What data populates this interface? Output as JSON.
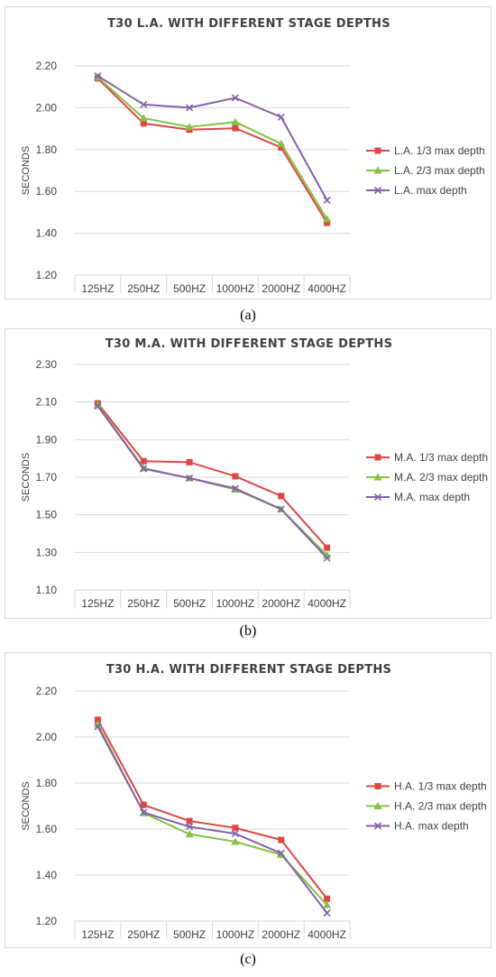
{
  "colors": {
    "series1": "#e04545",
    "series2": "#82c341",
    "series3": "#8560a8",
    "grid": "#d9d9d9",
    "text": "#404040"
  },
  "chart_data": [
    {
      "type": "line",
      "title": "T30 L.A. WITH DIFFERENT STAGE DEPTHS",
      "caption": "(a)",
      "xlabel": "",
      "ylabel": "SECONDS",
      "categories": [
        "125HZ",
        "250HZ",
        "500HZ",
        "1000HZ",
        "2000HZ",
        "4000HZ"
      ],
      "ylim": [
        1.2,
        2.2
      ],
      "ytick_step": 0.2,
      "ytick_labels": [
        "1.20",
        "1.40",
        "1.60",
        "1.80",
        "2.00",
        "2.20"
      ],
      "grid": true,
      "legend_position": "right",
      "series": [
        {
          "name": "L.A. 1/3 max depth",
          "marker": "square",
          "values": [
            2.14,
            1.925,
            1.895,
            1.902,
            1.81,
            1.45
          ]
        },
        {
          "name": "L.A. 2/3 max depth",
          "marker": "triangle",
          "values": [
            2.145,
            1.95,
            1.908,
            1.932,
            1.828,
            1.468
          ]
        },
        {
          "name": "L.A. max depth",
          "marker": "x",
          "values": [
            2.152,
            2.015,
            2.0,
            2.047,
            1.955,
            1.558
          ]
        }
      ]
    },
    {
      "type": "line",
      "title": "T30 M.A. WITH DIFFERENT STAGE DEPTHS",
      "caption": "(b)",
      "xlabel": "",
      "ylabel": "SECONDS",
      "categories": [
        "125HZ",
        "250HZ",
        "500HZ",
        "1000HZ",
        "2000HZ",
        "4000HZ"
      ],
      "ylim": [
        1.1,
        2.3
      ],
      "ytick_step": 0.2,
      "ytick_labels": [
        "1.10",
        "1.30",
        "1.50",
        "1.70",
        "1.90",
        "2.10",
        "2.30"
      ],
      "grid": true,
      "legend_position": "right",
      "series": [
        {
          "name": "M.A. 1/3 max depth",
          "marker": "square",
          "values": [
            2.093,
            1.785,
            1.78,
            1.705,
            1.6,
            1.325
          ]
        },
        {
          "name": "M.A. 2/3 max depth",
          "marker": "triangle",
          "values": [
            2.085,
            1.748,
            1.695,
            1.635,
            1.53,
            1.285
          ]
        },
        {
          "name": "M.A. max depth",
          "marker": "x",
          "values": [
            2.078,
            1.745,
            1.695,
            1.64,
            1.53,
            1.27
          ]
        }
      ]
    },
    {
      "type": "line",
      "title": "T30 H.A. WITH DIFFERENT STAGE DEPTHS",
      "caption": "(c)",
      "xlabel": "",
      "ylabel": "SECONDS",
      "categories": [
        "125HZ",
        "250HZ",
        "500HZ",
        "1000HZ",
        "2000HZ",
        "4000HZ"
      ],
      "ylim": [
        1.2,
        2.2
      ],
      "ytick_step": 0.2,
      "ytick_labels": [
        "1.20",
        "1.40",
        "1.60",
        "1.80",
        "2.00",
        "2.20"
      ],
      "grid": true,
      "legend_position": "right",
      "series": [
        {
          "name": "H.A. 1/3 max depth",
          "marker": "square",
          "values": [
            2.075,
            1.705,
            1.635,
            1.605,
            1.553,
            1.297
          ]
        },
        {
          "name": "H.A. 2/3 max depth",
          "marker": "triangle",
          "values": [
            2.055,
            1.67,
            1.578,
            1.545,
            1.488,
            1.27
          ]
        },
        {
          "name": "H.A. max depth",
          "marker": "x",
          "values": [
            2.045,
            1.672,
            1.61,
            1.58,
            1.495,
            1.235
          ]
        }
      ]
    }
  ]
}
